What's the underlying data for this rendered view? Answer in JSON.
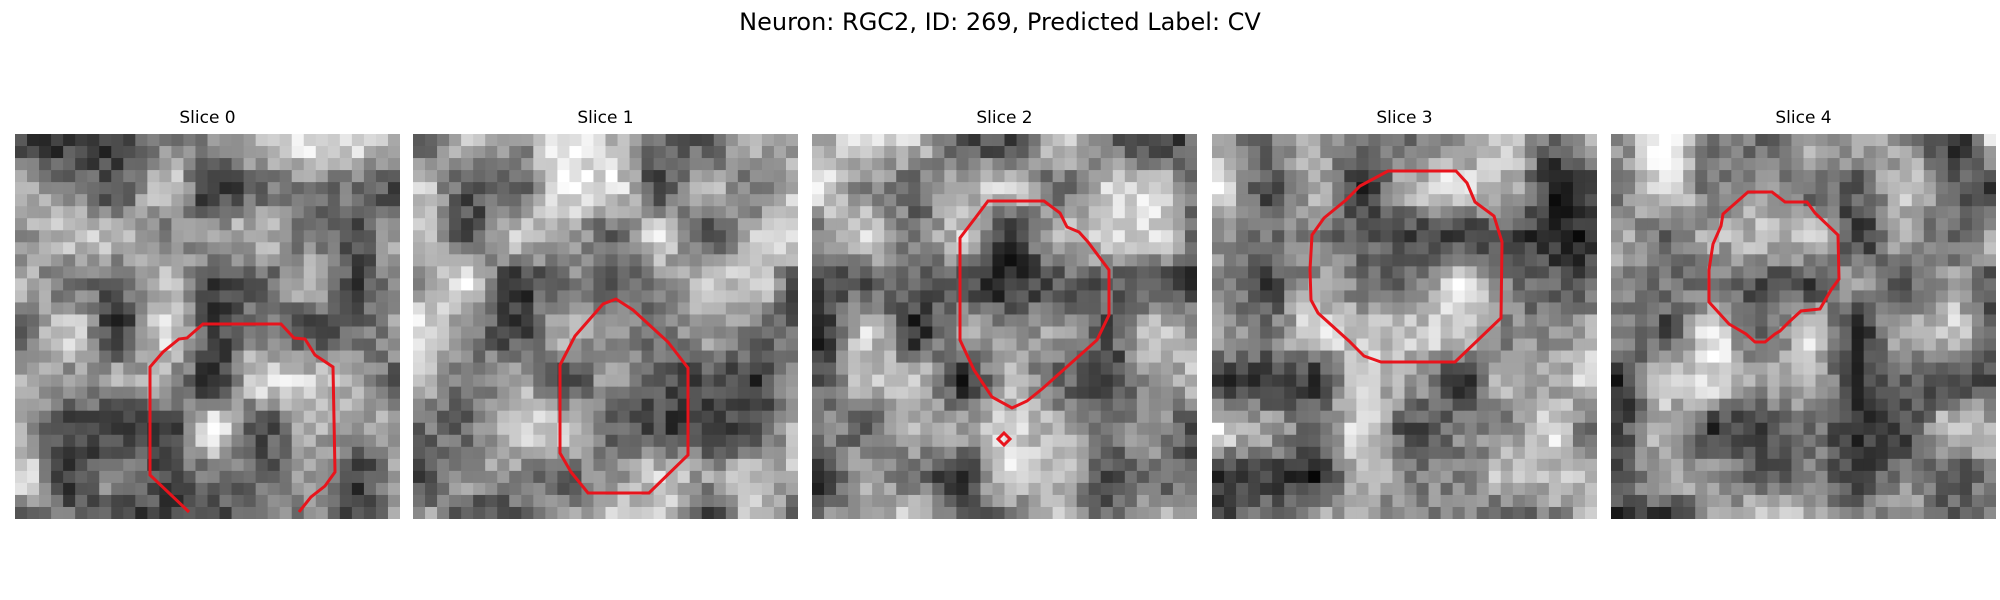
{
  "figure": {
    "title": "Neuron: RGC2, ID: 269, Predicted Label: CV"
  },
  "palette": {
    "contour": "#e8141c",
    "image_map": "grayscale"
  },
  "slices": [
    {
      "label": "Slice 0"
    },
    {
      "label": "Slice 1"
    },
    {
      "label": "Slice 2"
    },
    {
      "label": "Slice 3"
    },
    {
      "label": "Slice 4"
    }
  ]
}
